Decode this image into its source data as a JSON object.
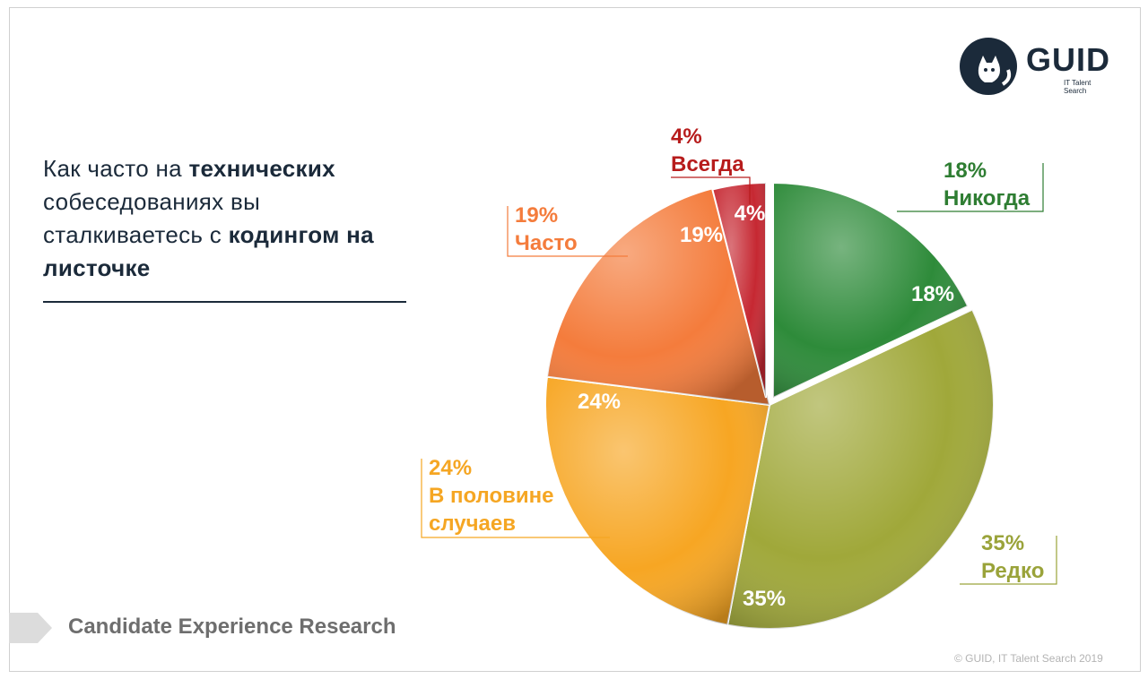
{
  "title": {
    "part1": "Как часто на ",
    "bold1": "технических",
    "part2": " собеседованиях вы сталкиваетесь с ",
    "bold2": "кодингом на листочке"
  },
  "logo": {
    "name": "GUID",
    "subtitle": "IT Talent Search"
  },
  "footer": {
    "label": "Candidate Experience Research",
    "copyright": "© GUID, IT Talent Search 2019"
  },
  "chart_data": {
    "type": "pie",
    "slices": [
      {
        "label": "Никогда",
        "value": 18,
        "display": "18%",
        "color": "#2e8b3a",
        "label_color": "#2e7d32"
      },
      {
        "label": "Редко",
        "value": 35,
        "display": "35%",
        "color": "#a0a83a",
        "label_color": "#9aa33a"
      },
      {
        "label": "В половине случаев",
        "value": 24,
        "display": "24%",
        "color": "#f7a623",
        "label_color": "#f5a623"
      },
      {
        "label": "Часто",
        "value": 19,
        "display": "19%",
        "color": "#f47c3c",
        "label_color": "#f47c3c"
      },
      {
        "label": "Всегда",
        "value": 4,
        "display": "4%",
        "color": "#c62832",
        "label_color": "#b71c1c"
      }
    ]
  }
}
